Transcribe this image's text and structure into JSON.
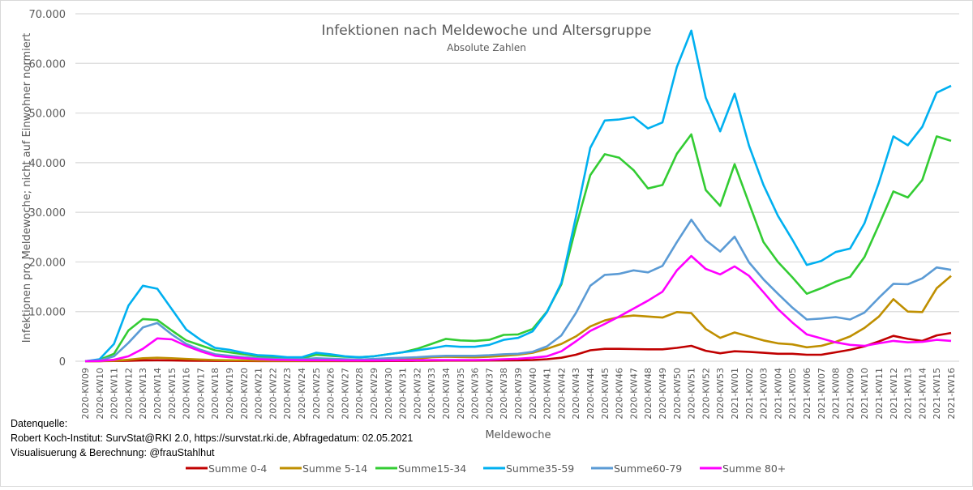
{
  "chart_data": {
    "type": "line",
    "title": "Infektionen nach Meldewoche und Altersgruppe",
    "subtitle": "Absolute Zahlen",
    "xlabel": "Meldewoche",
    "ylabel": "Infektionen pro Meldewoche; nicht auf Einwohner normiert",
    "ylim": [
      0,
      70000
    ],
    "yticks": [
      0,
      10000,
      20000,
      30000,
      40000,
      50000,
      60000,
      70000
    ],
    "ytick_labels": [
      "0",
      "10.000",
      "20.000",
      "30.000",
      "40.000",
      "50.000",
      "60.000",
      "70.000"
    ],
    "grid": true,
    "legend_position": "bottom",
    "categories": [
      "2020-KW09",
      "2020-KW10",
      "2020-KW11",
      "2020-KW12",
      "2020-KW13",
      "2020-KW14",
      "2020-KW15",
      "2020-KW16",
      "2020-KW17",
      "2020-KW18",
      "2020-KW19",
      "2020-KW20",
      "2020-KW21",
      "2020-KW22",
      "2020-KW23",
      "2020-KW24",
      "2020-KW25",
      "2020-KW26",
      "2020-KW27",
      "2020-KW28",
      "2020-KW29",
      "2020-KW30",
      "2020-KW31",
      "2020-KW32",
      "2020-KW33",
      "2020-KW34",
      "2020-KW35",
      "2020-KW36",
      "2020-KW37",
      "2020-KW38",
      "2020-KW39",
      "2020-KW40",
      "2020-KW41",
      "2020-KW42",
      "2020-KW43",
      "2020-KW44",
      "2020-KW45",
      "2020-KW46",
      "2020-KW47",
      "2020-KW48",
      "2020-KW49",
      "2020-KW50",
      "2020-KW51",
      "2020-KW52",
      "2020-KW53",
      "2021-KW01",
      "2021-KW02",
      "2021-KW03",
      "2021-KW04",
      "2021-KW05",
      "2021-KW06",
      "2021-KW07",
      "2021-KW08",
      "2021-KW09",
      "2021-KW10",
      "2021-KW11",
      "2021-KW12",
      "2021-KW13",
      "2021-KW14",
      "2021-KW15",
      "2021-KW16"
    ],
    "series": [
      {
        "name": "Summe 0-4",
        "color": "#c00000",
        "values": [
          0,
          20,
          50,
          100,
          180,
          200,
          160,
          120,
          90,
          70,
          60,
          50,
          40,
          40,
          30,
          30,
          40,
          40,
          40,
          40,
          40,
          50,
          60,
          80,
          110,
          130,
          130,
          130,
          140,
          160,
          190,
          250,
          400,
          700,
          1300,
          2200,
          2500,
          2500,
          2450,
          2400,
          2400,
          2700,
          3100,
          2100,
          1600,
          2000,
          1900,
          1700,
          1500,
          1500,
          1300,
          1300,
          1800,
          2300,
          3000,
          4000,
          5100,
          4500,
          4100,
          5200,
          5700
        ]
      },
      {
        "name": "Summe 5-14",
        "color": "#bf8f00",
        "values": [
          0,
          30,
          100,
          300,
          600,
          700,
          600,
          450,
          350,
          250,
          200,
          150,
          120,
          100,
          90,
          90,
          110,
          110,
          110,
          120,
          140,
          200,
          300,
          500,
          800,
          900,
          850,
          800,
          900,
          1100,
          1300,
          1700,
          2500,
          3500,
          5000,
          7000,
          8200,
          8900,
          9200,
          9000,
          8800,
          9900,
          9700,
          6500,
          4700,
          5800,
          5000,
          4200,
          3600,
          3400,
          2800,
          3100,
          3900,
          5000,
          6700,
          9000,
          12500,
          10000,
          9900,
          14700,
          17200
        ]
      },
      {
        "name": "Summe15-34",
        "color": "#33cc33",
        "values": [
          0,
          300,
          1500,
          6200,
          8500,
          8300,
          6200,
          4200,
          3200,
          2200,
          1800,
          1400,
          1000,
          800,
          600,
          600,
          1300,
          1100,
          900,
          800,
          1000,
          1400,
          1800,
          2500,
          3500,
          4500,
          4200,
          4100,
          4300,
          5300,
          5400,
          6500,
          10000,
          15500,
          27000,
          37500,
          41700,
          41000,
          38500,
          34800,
          35500,
          41800,
          45700,
          34500,
          31300,
          39700,
          31800,
          24000,
          20000,
          16900,
          13600,
          14700,
          16000,
          17000,
          21000,
          27500,
          34200,
          33000,
          36500,
          45300,
          44400
        ]
      },
      {
        "name": "Summe35-59",
        "color": "#00b0f0",
        "values": [
          0,
          400,
          3500,
          11200,
          15200,
          14600,
          10500,
          6400,
          4300,
          2700,
          2300,
          1700,
          1200,
          1100,
          800,
          800,
          1700,
          1400,
          1000,
          800,
          1000,
          1400,
          1800,
          2200,
          2600,
          3100,
          2900,
          2900,
          3300,
          4300,
          4700,
          6000,
          9900,
          15800,
          29000,
          43000,
          48500,
          48700,
          49200,
          46900,
          48100,
          59300,
          66600,
          53100,
          46300,
          53900,
          43400,
          35500,
          29300,
          24500,
          19400,
          20200,
          22000,
          22700,
          27800,
          36000,
          45300,
          43500,
          47200,
          54100,
          55500
        ]
      },
      {
        "name": "Summe60-79",
        "color": "#5b9bd5",
        "values": [
          0,
          150,
          1000,
          3700,
          6800,
          7700,
          5400,
          3500,
          2300,
          1400,
          1100,
          800,
          600,
          500,
          400,
          400,
          600,
          500,
          400,
          350,
          450,
          600,
          700,
          800,
          1000,
          1100,
          1100,
          1100,
          1200,
          1400,
          1500,
          1900,
          3000,
          5200,
          9700,
          15200,
          17400,
          17600,
          18300,
          17900,
          19200,
          24000,
          28500,
          24400,
          22100,
          25100,
          19900,
          16500,
          13600,
          10800,
          8400,
          8600,
          8900,
          8400,
          9800,
          12800,
          15600,
          15500,
          16700,
          18900,
          18400
        ]
      },
      {
        "name": "Summe 80+",
        "color": "#ff00ff",
        "values": [
          0,
          50,
          300,
          1000,
          2500,
          4600,
          4400,
          3100,
          2000,
          1100,
          800,
          600,
          400,
          300,
          250,
          200,
          200,
          200,
          150,
          150,
          150,
          150,
          200,
          200,
          250,
          250,
          250,
          250,
          300,
          400,
          500,
          700,
          1000,
          2000,
          4000,
          6100,
          7500,
          9000,
          10600,
          12200,
          14000,
          18300,
          21200,
          18600,
          17500,
          19100,
          17200,
          13900,
          10500,
          7800,
          5400,
          4600,
          3800,
          3300,
          3100,
          3600,
          4100,
          3800,
          3900,
          4300,
          4100
        ]
      }
    ]
  },
  "footer": {
    "source_label": "Datenquelle:",
    "source_text": " Robert Koch-Institut: SurvStat@RKI 2.0, https://survstat.rki.de, Abfragedatum: 02.05.2021",
    "credit": "Visualisuerung & Berechnung: @frauStahlhut"
  }
}
